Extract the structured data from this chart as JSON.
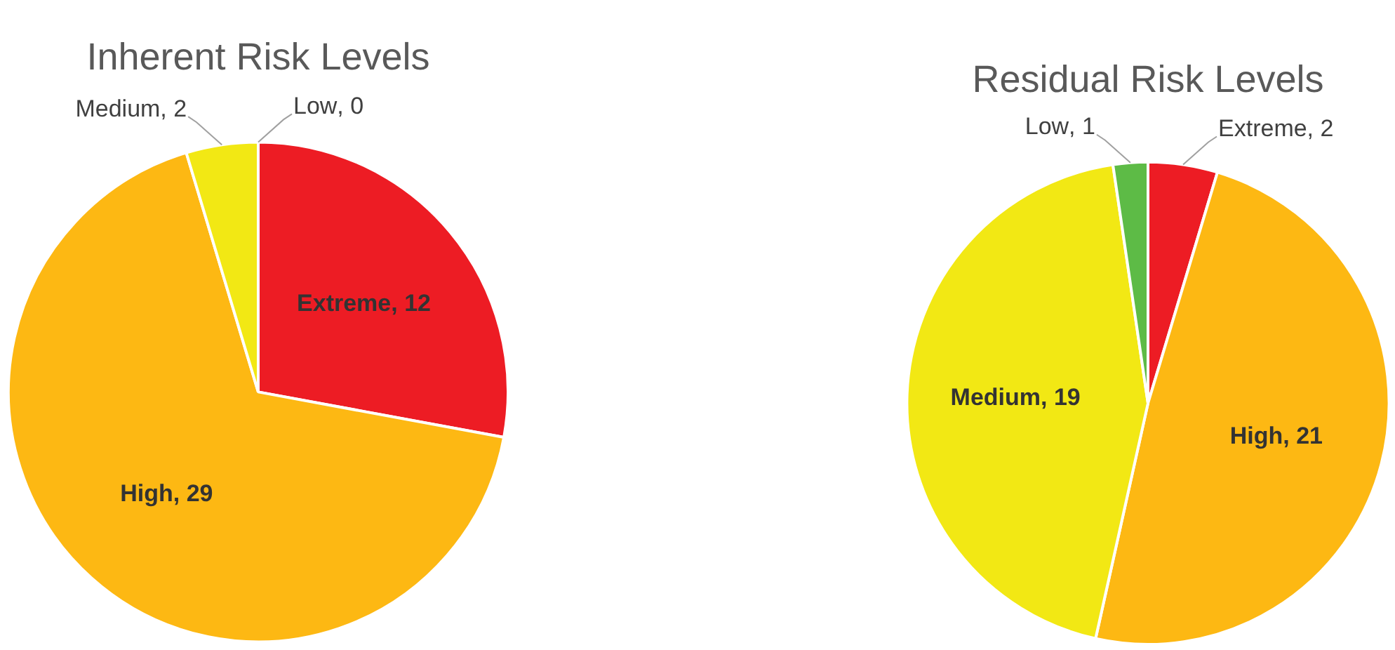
{
  "chart_data": [
    {
      "type": "pie",
      "title": "Inherent Risk Levels",
      "categories": [
        "Extreme",
        "High",
        "Medium",
        "Low"
      ],
      "values": [
        12,
        29,
        2,
        0
      ],
      "value_labels": [
        ", 12",
        ", 29",
        ", 2",
        ", 0"
      ],
      "colors": [
        "#ed1c24",
        "#fdb813",
        "#f2e814",
        "#5dbb46"
      ],
      "legend": false
    },
    {
      "type": "pie",
      "title": "Residual Risk Levels",
      "categories": [
        "Extreme",
        "High",
        "Medium",
        "Low"
      ],
      "values": [
        2,
        21,
        19,
        1
      ],
      "value_labels": [
        ", 2",
        ", 21",
        ", 19",
        ", 1"
      ],
      "colors": [
        "#ed1c24",
        "#fdb813",
        "#f2e814",
        "#5dbb46"
      ],
      "legend": false
    }
  ]
}
